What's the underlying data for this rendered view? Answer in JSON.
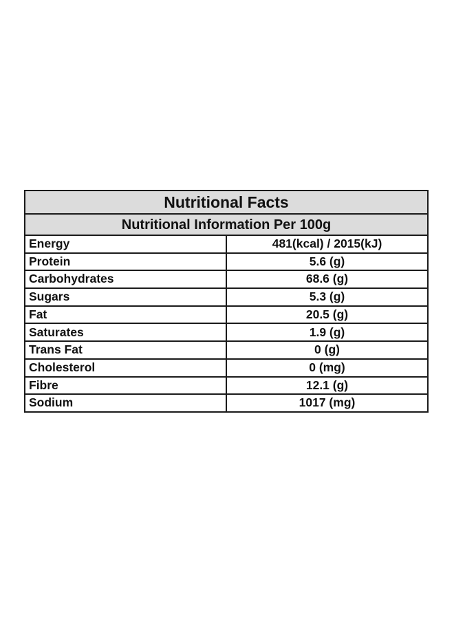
{
  "table": {
    "title": "Nutritional Facts",
    "subtitle": "Nutritional Information Per 100g",
    "rows": [
      {
        "label": "Energy",
        "value": "481(kcal) / 2015(kJ)"
      },
      {
        "label": "Protein",
        "value": "5.6 (g)"
      },
      {
        "label": "Carbohydrates",
        "value": "68.6 (g)"
      },
      {
        "label": "Sugars",
        "value": "5.3 (g)"
      },
      {
        "label": "Fat",
        "value": "20.5 (g)"
      },
      {
        "label": "Saturates",
        "value": "1.9 (g)"
      },
      {
        "label": "Trans Fat",
        "value": "0 (g)"
      },
      {
        "label": "Cholesterol",
        "value": "0 (mg)"
      },
      {
        "label": "Fibre",
        "value": "12.1 (g)"
      },
      {
        "label": "Sodium",
        "value": "1017 (mg)"
      }
    ]
  },
  "colors": {
    "header_background": "#dcdcdc",
    "border": "#1a1a1a",
    "text": "#111111"
  }
}
